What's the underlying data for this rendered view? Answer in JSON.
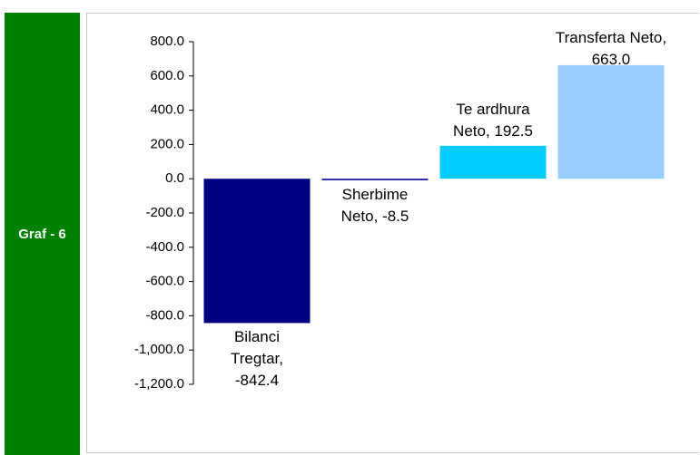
{
  "side_label": "Graf - 6",
  "chart_data": {
    "type": "bar",
    "values": [
      -842.4,
      -8.5,
      192.5,
      663.0
    ],
    "value_labels": [
      "Bilanci Tregtar, -842.4",
      "Sherbime Neto, -8.5",
      "Te ardhura Neto, 192.5",
      "Transferta Neto, 663.0"
    ],
    "colors": [
      "#000080",
      "#00008b",
      "#00ccff",
      "#99ccff"
    ],
    "ylim": [
      -1200,
      800
    ],
    "yticks": [
      {
        "value": 800,
        "label": "800.0"
      },
      {
        "value": 600,
        "label": "600.0"
      },
      {
        "value": 400,
        "label": "400.0"
      },
      {
        "value": 200,
        "label": "200.0"
      },
      {
        "value": 0,
        "label": "0.0"
      },
      {
        "value": -200,
        "label": "-200.0"
      },
      {
        "value": -400,
        "label": "-400.0"
      },
      {
        "value": -600,
        "label": "-600.0"
      },
      {
        "value": -800,
        "label": "-800.0"
      },
      {
        "value": -1000,
        "label": "-1,000.0"
      },
      {
        "value": -1200,
        "label": "-1,200.0"
      }
    ],
    "grid": false
  }
}
